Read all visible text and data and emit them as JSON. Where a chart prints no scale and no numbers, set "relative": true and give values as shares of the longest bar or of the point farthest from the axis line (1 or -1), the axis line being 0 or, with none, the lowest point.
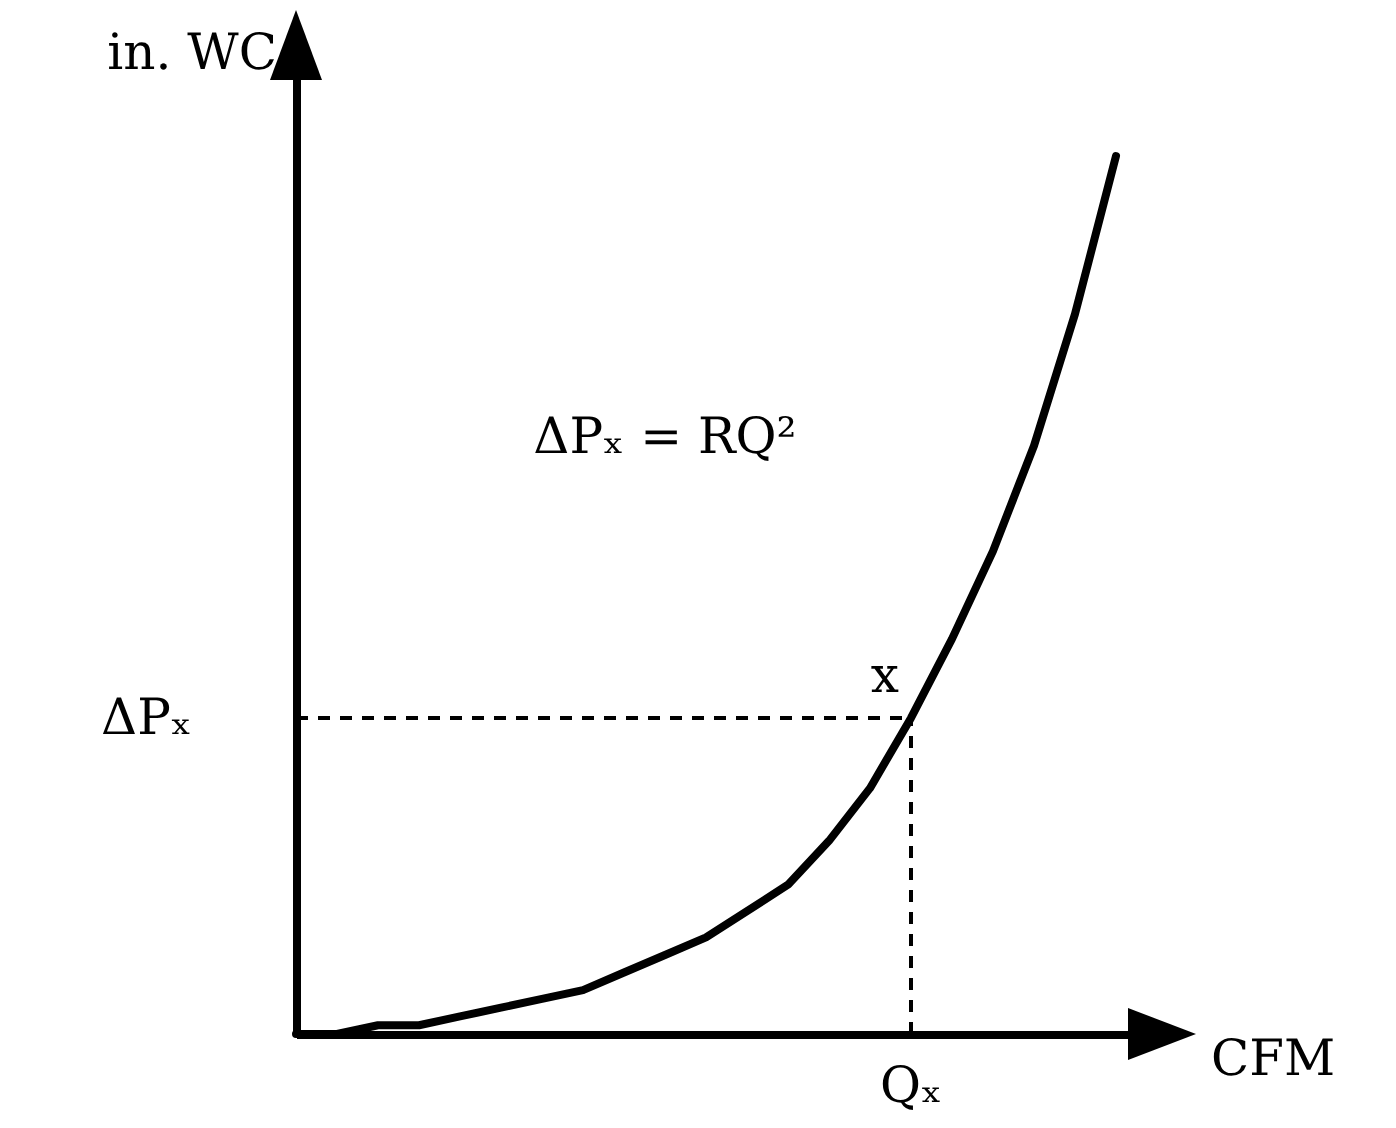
{
  "chart_data": {
    "type": "line",
    "relative": true,
    "xlabel": "CFM",
    "ylabel": "in. WC",
    "categories": [
      null,
      null,
      null,
      null,
      null,
      null,
      null,
      null,
      null,
      null,
      null,
      null,
      null,
      null,
      null,
      null,
      null,
      null,
      null,
      null,
      null
    ],
    "series": [
      {
        "color": "#000000",
        "values": [
          0,
          0,
          0.01,
          0.01,
          0.02,
          0.03,
          0.04,
          0.05,
          0.07,
          0.09,
          0.11,
          0.14,
          0.17,
          0.22,
          0.28,
          0.36,
          0.45,
          0.55,
          0.67,
          0.82,
          1
        ]
      }
    ],
    "annotations": [
      "ΔPₓ = RQ²",
      "x",
      "ΔPₓ",
      "Qₓ"
    ],
    "line_style": "solid"
  }
}
